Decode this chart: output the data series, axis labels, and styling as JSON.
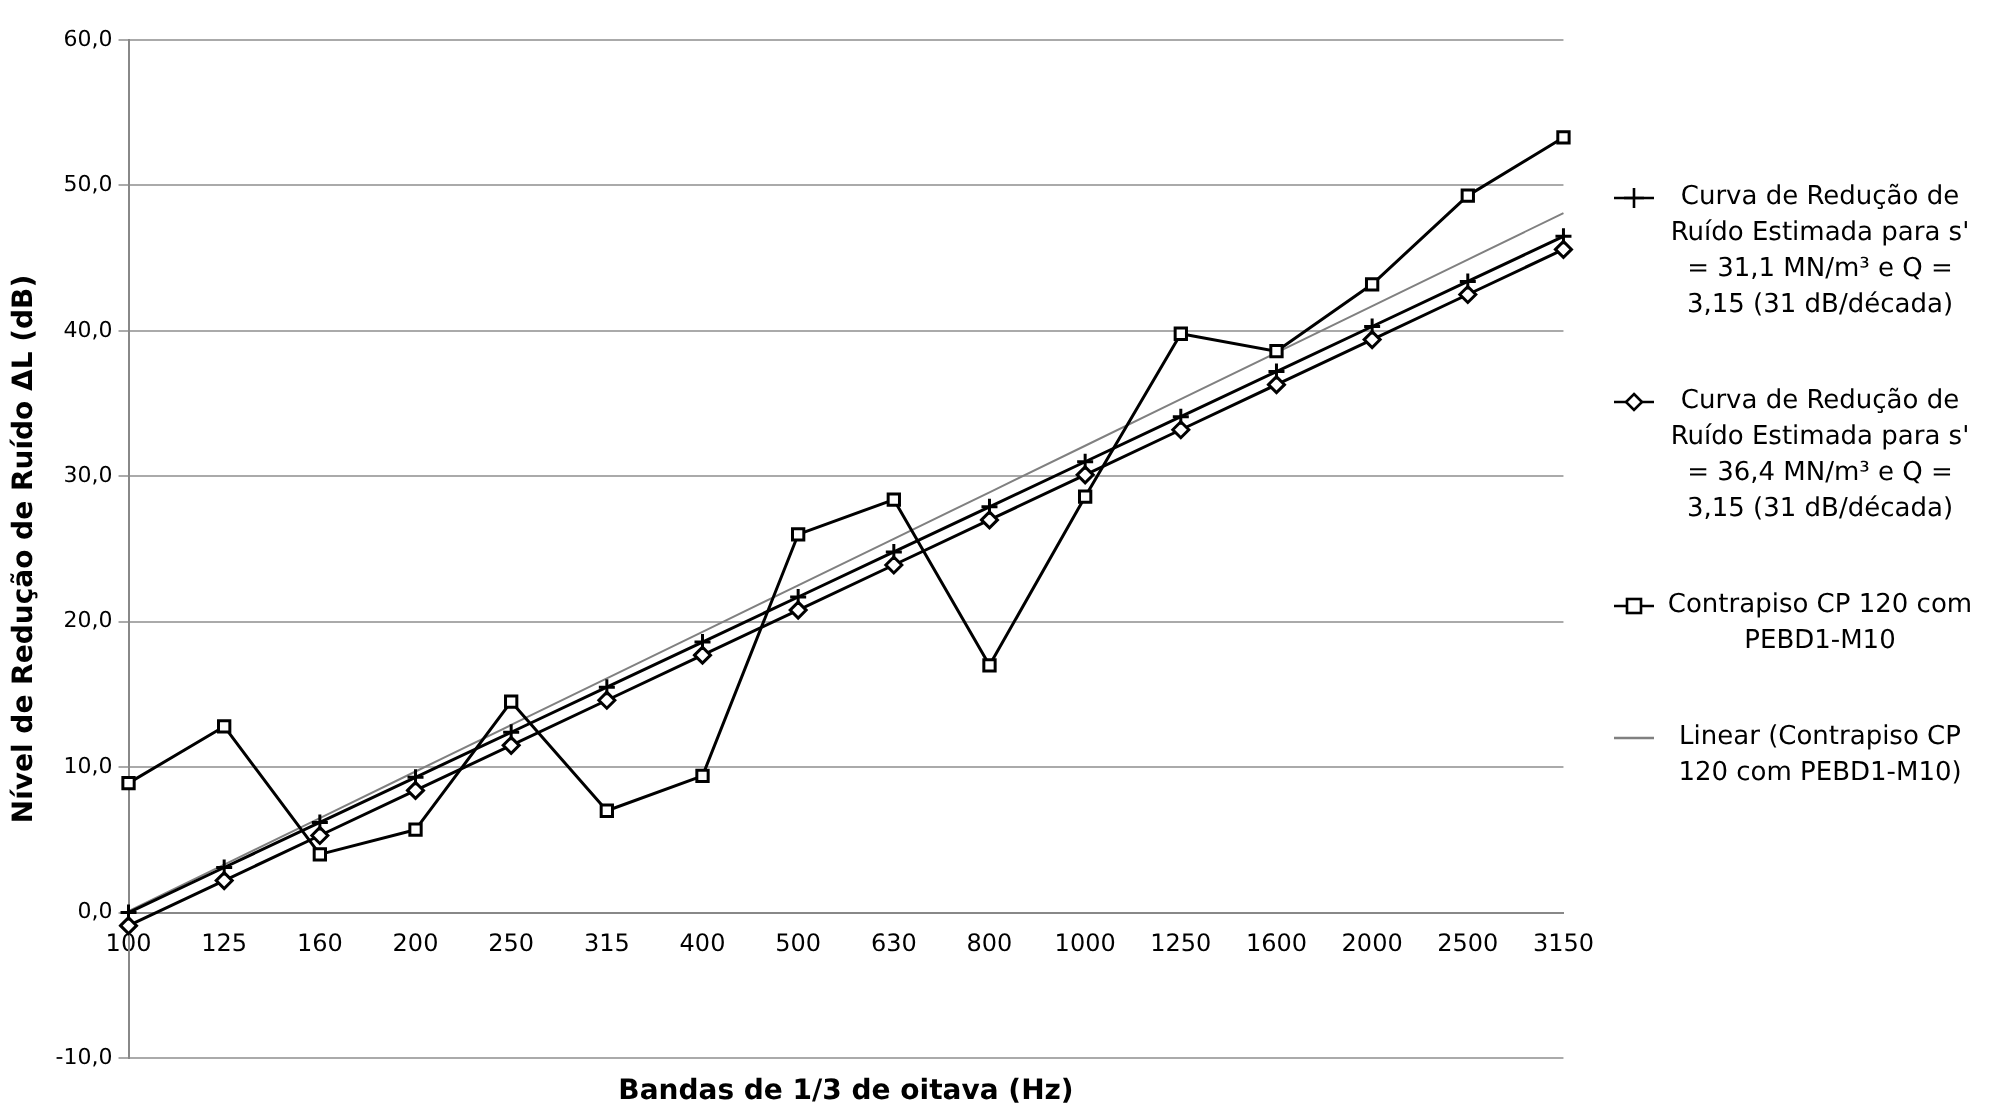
{
  "chart_data": {
    "type": "line",
    "xlabel": "Bandas de 1/3 de oitava (Hz)",
    "ylabel": "Nível de Redução de Ruído ΔL (dB)",
    "categories": [
      "100",
      "125",
      "160",
      "200",
      "250",
      "315",
      "400",
      "500",
      "630",
      "800",
      "1000",
      "1250",
      "1600",
      "2000",
      "2500",
      "3150"
    ],
    "series": [
      {
        "name": "Curva de Redução de Ruído Estimada para s' = 31,1 MN/m³ e Q = 3,15 (31 dB/década)",
        "color": "#000000",
        "marker": "cross",
        "values": [
          0.0,
          3.1,
          6.2,
          9.3,
          12.4,
          15.5,
          18.6,
          21.7,
          24.8,
          27.9,
          31.0,
          34.1,
          37.2,
          40.3,
          43.4,
          46.5
        ]
      },
      {
        "name": "Curva de Redução de Ruído Estimada para s' = 36,4 MN/m³ e Q = 3,15 (31 dB/década)",
        "color": "#000000",
        "marker": "diamond",
        "values": [
          -0.9,
          2.2,
          5.3,
          8.4,
          11.5,
          14.6,
          17.7,
          20.8,
          23.9,
          27.0,
          30.1,
          33.2,
          36.3,
          39.4,
          42.5,
          45.6
        ]
      },
      {
        "name": "Contrapiso CP 120 com PEBD1-M10",
        "color": "#000000",
        "marker": "square",
        "values": [
          8.9,
          12.8,
          4.0,
          5.7,
          14.5,
          7.0,
          9.4,
          26.0,
          28.4,
          17.0,
          28.6,
          39.8,
          38.6,
          43.2,
          49.3,
          53.3
        ]
      },
      {
        "name": "Linear (Contrapiso CP 120 com PEBD1-M10)",
        "color": "#808080",
        "marker": "none",
        "values": [
          0.1,
          3.3,
          6.5,
          9.7,
          12.9,
          16.1,
          19.3,
          22.5,
          25.7,
          28.9,
          32.1,
          35.3,
          38.5,
          41.7,
          44.9,
          48.1
        ]
      }
    ],
    "ylim": [
      -10,
      60
    ],
    "yticks": [
      {
        "value": -10,
        "label": "-10,0"
      },
      {
        "value": 0,
        "label": "0,0"
      },
      {
        "value": 10,
        "label": "10,0"
      },
      {
        "value": 20,
        "label": "20,0"
      },
      {
        "value": 30,
        "label": "30,0"
      },
      {
        "value": 40,
        "label": "40,0"
      },
      {
        "value": 50,
        "label": "50,0"
      },
      {
        "value": 60,
        "label": "60,0"
      }
    ],
    "grid": "y",
    "legend": "right"
  }
}
